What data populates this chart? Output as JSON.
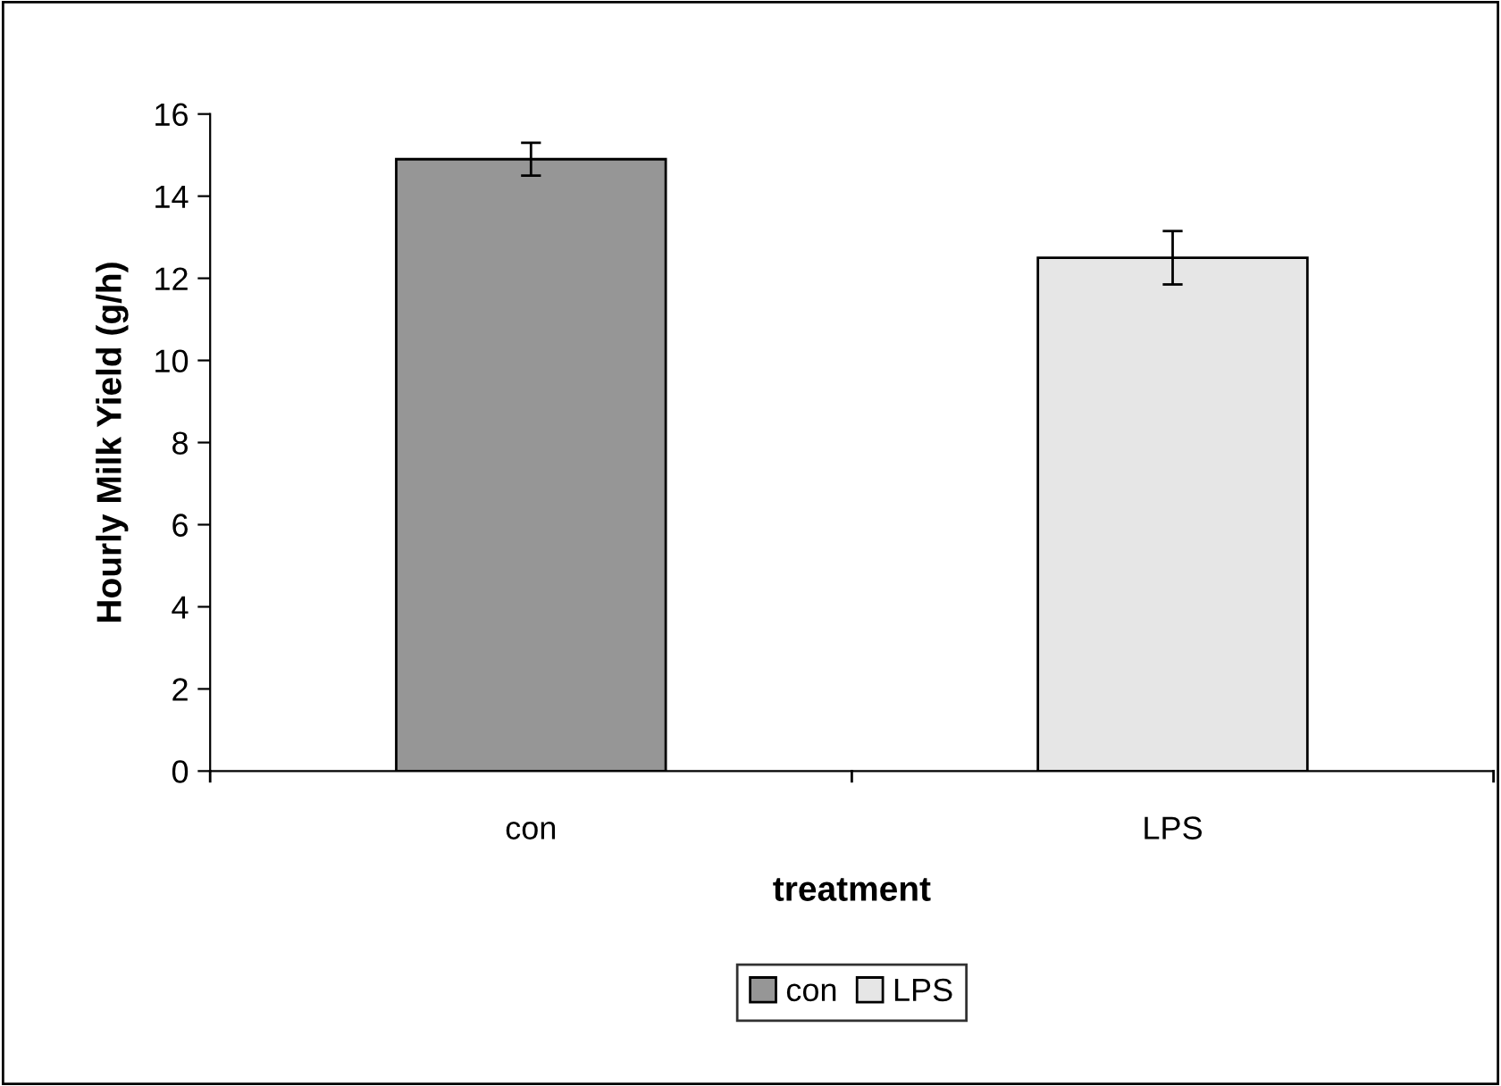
{
  "chart_data": {
    "type": "bar",
    "xlabel": "treatment",
    "ylabel": "Hourly Milk Yield (g/h)",
    "categories": [
      "con",
      "LPS"
    ],
    "series": [
      {
        "name": "con",
        "color": "#969696",
        "values": [
          14.9,
          null
        ],
        "errors": [
          0.4,
          null
        ]
      },
      {
        "name": "LPS",
        "color": "#e6e6e6",
        "values": [
          null,
          12.5
        ],
        "errors": [
          null,
          0.65
        ]
      }
    ],
    "ylim": [
      0,
      16
    ],
    "yticks": [
      0,
      2,
      4,
      6,
      8,
      10,
      12,
      14,
      16
    ],
    "grid": false,
    "legend": "bottom"
  }
}
